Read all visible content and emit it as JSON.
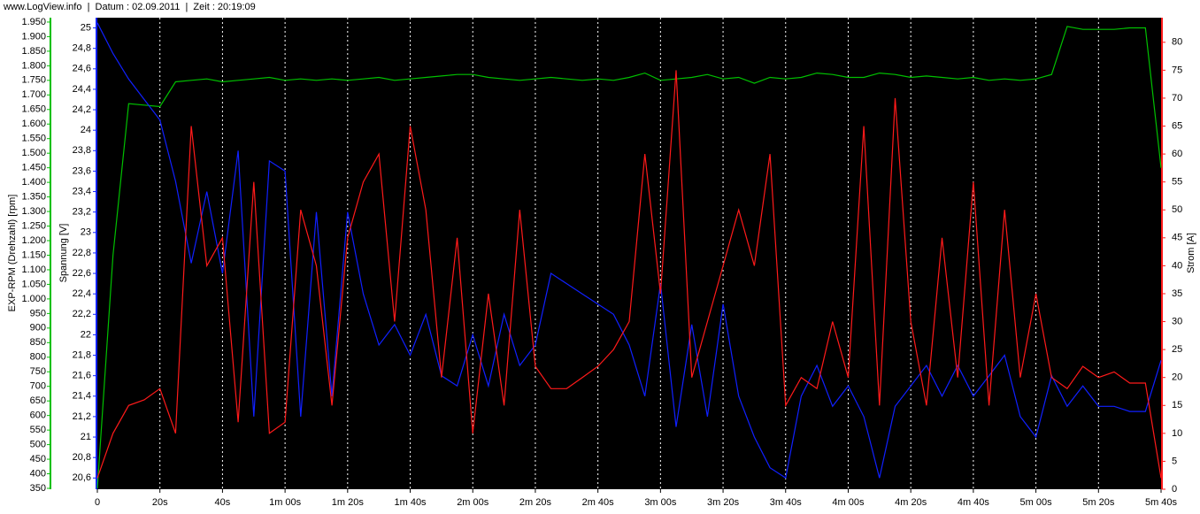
{
  "header": "www.LogView.info  |  Datum : 02.09.2011  |  Zeit : 20:19:09",
  "chart_data": {
    "type": "line",
    "y_label": "EXP-RPM (Drehzahl) [rpm]",
    "y2_label": "Spannung [V]",
    "y3_label": "Strom [A]",
    "grid": true,
    "xlim": [
      0,
      340
    ],
    "xticks": [
      0,
      {
        "value": 20,
        "label": "20s"
      },
      {
        "value": 40,
        "label": "40s"
      },
      {
        "value": 60,
        "label": "1m 00s"
      },
      {
        "value": 80,
        "label": "1m 20s"
      },
      {
        "value": 100,
        "label": "1m 40s"
      },
      {
        "value": 120,
        "label": "2m 00s"
      },
      {
        "value": 140,
        "label": "2m 20s"
      },
      {
        "value": 160,
        "label": "2m 40s"
      },
      {
        "value": 180,
        "label": "3m 00s"
      },
      {
        "value": 200,
        "label": "3m 20s"
      },
      {
        "value": 220,
        "label": "3m 40s"
      },
      {
        "value": 240,
        "label": "4m 00s"
      },
      {
        "value": 260,
        "label": "4m 20s"
      },
      {
        "value": 280,
        "label": "4m 40s"
      },
      {
        "value": 300,
        "label": "5m 00s"
      },
      {
        "value": 320,
        "label": "5m 20s"
      },
      {
        "value": 340,
        "label": "5m 40s"
      }
    ],
    "ylim": [
      347,
      1965
    ],
    "yticks": [
      350,
      400,
      450,
      500,
      550,
      600,
      650,
      700,
      750,
      800,
      850,
      900,
      950,
      {
        "value": 1000,
        "label": "1.000"
      },
      {
        "value": 1050,
        "label": "1.050"
      },
      {
        "value": 1100,
        "label": "1.100"
      },
      {
        "value": 1150,
        "label": "1.150"
      },
      {
        "value": 1200,
        "label": "1.200"
      },
      {
        "value": 1250,
        "label": "1.250"
      },
      {
        "value": 1300,
        "label": "1.300"
      },
      {
        "value": 1350,
        "label": "1.350"
      },
      {
        "value": 1400,
        "label": "1.400"
      },
      {
        "value": 1450,
        "label": "1.450"
      },
      {
        "value": 1500,
        "label": "1.500"
      },
      {
        "value": 1550,
        "label": "1.550"
      },
      {
        "value": 1600,
        "label": "1.600"
      },
      {
        "value": 1650,
        "label": "1.650"
      },
      {
        "value": 1700,
        "label": "1.700"
      },
      {
        "value": 1750,
        "label": "1.750"
      },
      {
        "value": 1800,
        "label": "1.800"
      },
      {
        "value": 1850,
        "label": "1.850"
      },
      {
        "value": 1900,
        "label": "1.900"
      },
      {
        "value": 1950,
        "label": "1.950"
      }
    ],
    "y2lim": [
      20.49,
      25.1
    ],
    "y2ticks": [
      {
        "value": 20.6,
        "label": "20,6"
      },
      {
        "value": 20.8,
        "label": "20,8"
      },
      21,
      {
        "value": 21.2,
        "label": "21,2"
      },
      {
        "value": 21.4,
        "label": "21,4"
      },
      {
        "value": 21.6,
        "label": "21,6"
      },
      {
        "value": 21.8,
        "label": "21,8"
      },
      22,
      {
        "value": 22.2,
        "label": "22,2"
      },
      {
        "value": 22.4,
        "label": "22,4"
      },
      {
        "value": 22.6,
        "label": "22,6"
      },
      {
        "value": 22.8,
        "label": "22,8"
      },
      23,
      {
        "value": 23.2,
        "label": "23,2"
      },
      {
        "value": 23.4,
        "label": "23,4"
      },
      {
        "value": 23.6,
        "label": "23,6"
      },
      {
        "value": 23.8,
        "label": "23,8"
      },
      24,
      {
        "value": 24.2,
        "label": "24,2"
      },
      {
        "value": 24.4,
        "label": "24,4"
      },
      {
        "value": 24.6,
        "label": "24,6"
      },
      {
        "value": 24.8,
        "label": "24,8"
      },
      25
    ],
    "y3lim": [
      0,
      84.4
    ],
    "y3ticks": [
      0,
      5,
      10,
      15,
      20,
      25,
      30,
      35,
      40,
      45,
      50,
      55,
      60,
      65,
      70,
      75,
      80
    ],
    "x": [
      0,
      5,
      10,
      15,
      20,
      25,
      30,
      35,
      40,
      45,
      50,
      55,
      60,
      65,
      70,
      75,
      80,
      85,
      90,
      95,
      100,
      105,
      110,
      115,
      120,
      125,
      130,
      135,
      140,
      145,
      150,
      155,
      160,
      165,
      170,
      175,
      180,
      185,
      190,
      195,
      200,
      205,
      210,
      215,
      220,
      225,
      230,
      235,
      240,
      245,
      250,
      255,
      260,
      265,
      270,
      275,
      280,
      285,
      290,
      295,
      300,
      305,
      310,
      315,
      320,
      325,
      330,
      335,
      340
    ],
    "series": [
      {
        "color": "#00c000",
        "axis": "y",
        "values": [
          350,
          1150,
          1670,
          1665,
          1660,
          1745,
          1750,
          1755,
          1745,
          1750,
          1755,
          1760,
          1750,
          1755,
          1750,
          1755,
          1750,
          1755,
          1760,
          1750,
          1755,
          1760,
          1765,
          1770,
          1770,
          1760,
          1755,
          1750,
          1755,
          1760,
          1755,
          1750,
          1755,
          1750,
          1760,
          1775,
          1750,
          1755,
          1760,
          1770,
          1755,
          1760,
          1740,
          1760,
          1755,
          1760,
          1775,
          1770,
          1760,
          1760,
          1775,
          1770,
          1760,
          1765,
          1760,
          1755,
          1760,
          1750,
          1755,
          1750,
          1755,
          1770,
          1935,
          1925,
          1925,
          1925,
          1930,
          1930,
          1450
        ]
      },
      {
        "color": "#1020ff",
        "axis": "y2",
        "values": [
          25.05,
          24.75,
          24.5,
          24.3,
          24.1,
          23.5,
          22.7,
          23.4,
          22.6,
          23.8,
          21.2,
          23.7,
          23.6,
          21.2,
          23.2,
          21.4,
          23.2,
          22.4,
          21.9,
          22.1,
          21.8,
          22.2,
          21.6,
          21.5,
          22.0,
          21.5,
          22.2,
          21.7,
          21.9,
          22.6,
          22.5,
          22.4,
          22.3,
          22.2,
          21.9,
          21.4,
          22.5,
          21.1,
          22.1,
          21.2,
          22.3,
          21.4,
          21.0,
          20.7,
          20.6,
          21.4,
          21.7,
          21.3,
          21.5,
          21.2,
          20.6,
          21.3,
          21.5,
          21.7,
          21.4,
          21.7,
          21.4,
          21.6,
          21.8,
          21.2,
          21.0,
          21.6,
          21.3,
          21.5,
          21.3,
          21.3,
          21.25,
          21.25,
          21.75
        ]
      },
      {
        "color": "#ff1a1a",
        "axis": "y3",
        "values": [
          2,
          10,
          15,
          16,
          18,
          10,
          65,
          40,
          45,
          12,
          55,
          10,
          12,
          50,
          40,
          15,
          45,
          55,
          60,
          30,
          65,
          50,
          20,
          45,
          10,
          35,
          15,
          50,
          22,
          18,
          18,
          20,
          22,
          25,
          30,
          60,
          35,
          75,
          20,
          30,
          40,
          50,
          40,
          60,
          15,
          20,
          18,
          30,
          20,
          65,
          15,
          70,
          30,
          15,
          45,
          20,
          55,
          15,
          50,
          20,
          35,
          20,
          18,
          22,
          20,
          21,
          19,
          19,
          2
        ]
      }
    ]
  }
}
